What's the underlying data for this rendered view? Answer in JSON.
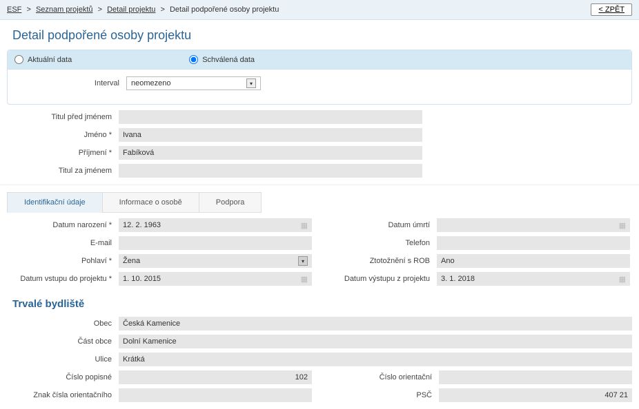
{
  "breadcrumb": {
    "items": [
      "ESF",
      "Seznam projektů",
      "Detail projektu"
    ],
    "current": "Detail podpořené osoby projektu"
  },
  "back_button": "< ZPĚT",
  "page_title": "Detail podpořené osoby projektu",
  "radios": {
    "current": "Aktuální data",
    "approved": "Schválená data",
    "selected": "approved"
  },
  "interval": {
    "label": "Interval",
    "value": "neomezeno"
  },
  "name": {
    "title_before": {
      "label": "Titul před jménem",
      "value": ""
    },
    "firstname": {
      "label": "Jméno *",
      "value": "Ivana"
    },
    "surname": {
      "label": "Příjmení *",
      "value": "Fabíková"
    },
    "title_after": {
      "label": "Titul za jménem",
      "value": ""
    }
  },
  "tabs": {
    "ident": "Identifikační údaje",
    "info": "Informace o osobě",
    "support": "Podpora"
  },
  "ident": {
    "birth": {
      "label": "Datum narození *",
      "value": "12. 2. 1963"
    },
    "death": {
      "label": "Datum úmrtí",
      "value": ""
    },
    "email": {
      "label": "E-mail",
      "value": ""
    },
    "phone": {
      "label": "Telefon",
      "value": ""
    },
    "sex": {
      "label": "Pohlaví *",
      "value": "Žena"
    },
    "rob": {
      "label": "Ztotožnění s ROB",
      "value": "Ano"
    },
    "entry": {
      "label": "Datum vstupu do projektu *",
      "value": "1. 10. 2015"
    },
    "exit": {
      "label": "Datum výstupu z projektu",
      "value": "3. 1. 2018"
    }
  },
  "address_title": "Trvalé bydliště",
  "address": {
    "obec": {
      "label": "Obec",
      "value": "Česká Kamenice"
    },
    "cast": {
      "label": "Část obce",
      "value": "Dolní Kamenice"
    },
    "ulice": {
      "label": "Ulice",
      "value": "Krátká"
    },
    "cp": {
      "label": "Číslo popisné",
      "value": "102"
    },
    "co": {
      "label": "Číslo orientační",
      "value": ""
    },
    "znak": {
      "label": "Znak čísla orientačního",
      "value": ""
    },
    "psc": {
      "label": "PSČ",
      "value": "407 21"
    }
  }
}
